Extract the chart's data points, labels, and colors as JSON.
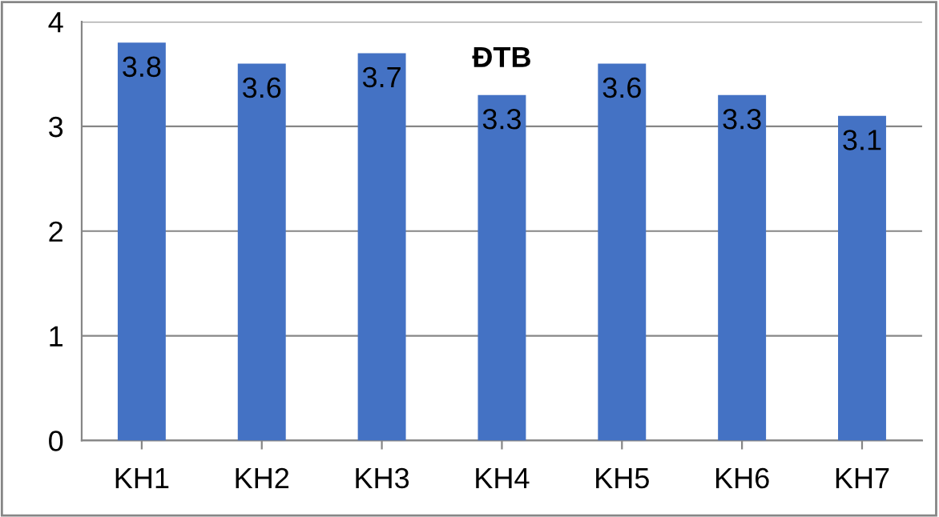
{
  "chart_data": {
    "type": "bar",
    "title": "ĐTB",
    "categories": [
      "KH1",
      "KH2",
      "KH3",
      "KH4",
      "KH5",
      "KH6",
      "KH7"
    ],
    "values": [
      3.8,
      3.6,
      3.7,
      3.3,
      3.6,
      3.3,
      3.1
    ],
    "color": "#4472c4",
    "ylim": [
      0,
      4
    ],
    "yticks": [
      0,
      1,
      2,
      3,
      4
    ],
    "grid": "y",
    "data_labels": true
  }
}
